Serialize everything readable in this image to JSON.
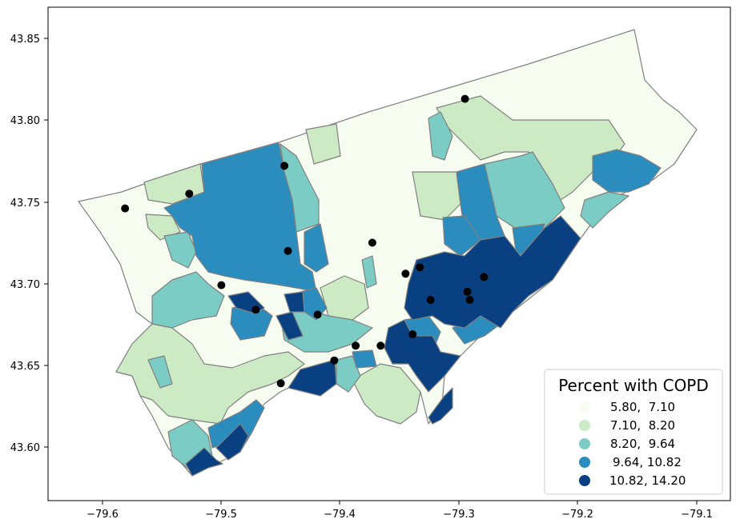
{
  "colors": {
    "class_1": "#f7fcf0",
    "class_2": "#ccebc5",
    "class_3": "#7bccc4",
    "class_4": "#2b8cbe",
    "class_5": "#084081",
    "boundary": "#808080",
    "point": "#000000"
  },
  "legend": {
    "title": "Percent with COPD",
    "placement": "lower-right",
    "items": [
      {
        "label": "5.80,  7.10",
        "color": "#f7fcf0"
      },
      {
        "label": "7.10,  8.20",
        "color": "#ccebc5"
      },
      {
        "label": "8.20,  9.64",
        "color": "#7bccc4"
      },
      {
        "label": "9.64, 10.82",
        "color": "#2b8cbe"
      },
      {
        "label": "10.82, 14.20",
        "color": "#084081"
      }
    ]
  },
  "axes": {
    "x_ticks": [
      "−79.6",
      "−79.5",
      "−79.4",
      "−79.3",
      "−79.2",
      "−79.1"
    ],
    "x_tick_values": [
      -79.6,
      -79.5,
      -79.4,
      -79.3,
      -79.2,
      -79.1
    ],
    "y_ticks": [
      "43.85",
      "43.80",
      "43.75",
      "43.70",
      "43.65",
      "43.60"
    ],
    "y_tick_values": [
      43.85,
      43.8,
      43.75,
      43.7,
      43.65,
      43.6
    ],
    "xlim": [
      -79.661,
      -79.094
    ],
    "ylim": [
      43.567,
      43.872
    ]
  },
  "points": [
    {
      "lon": -79.295,
      "lat": 43.813
    },
    {
      "lon": -79.447,
      "lat": 43.772
    },
    {
      "lon": -79.527,
      "lat": 43.755
    },
    {
      "lon": -79.581,
      "lat": 43.746
    },
    {
      "lon": -79.373,
      "lat": 43.725
    },
    {
      "lon": -79.444,
      "lat": 43.72
    },
    {
      "lon": -79.333,
      "lat": 43.71
    },
    {
      "lon": -79.345,
      "lat": 43.706
    },
    {
      "lon": -79.279,
      "lat": 43.704
    },
    {
      "lon": -79.5,
      "lat": 43.699
    },
    {
      "lon": -79.293,
      "lat": 43.695
    },
    {
      "lon": -79.324,
      "lat": 43.69
    },
    {
      "lon": -79.291,
      "lat": 43.69
    },
    {
      "lon": -79.471,
      "lat": 43.684
    },
    {
      "lon": -79.419,
      "lat": 43.681
    },
    {
      "lon": -79.339,
      "lat": 43.669
    },
    {
      "lon": -79.387,
      "lat": 43.662
    },
    {
      "lon": -79.366,
      "lat": 43.662
    },
    {
      "lon": -79.405,
      "lat": 43.653
    },
    {
      "lon": -79.45,
      "lat": 43.639
    }
  ]
}
